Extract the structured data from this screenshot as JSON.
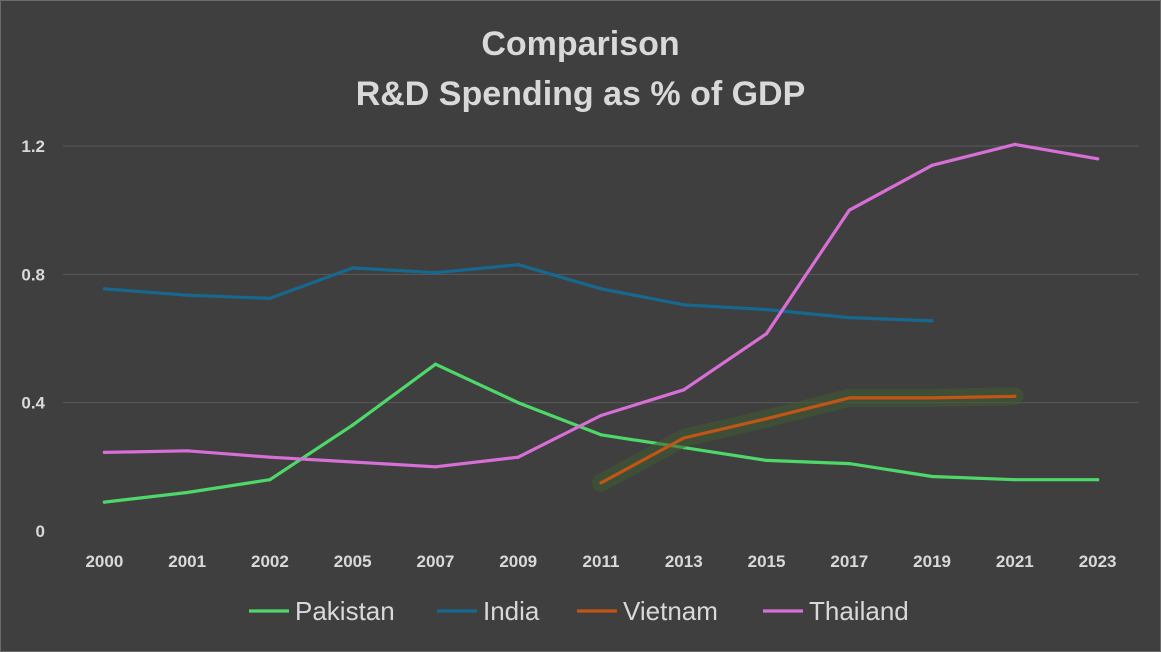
{
  "chart_data": {
    "type": "line",
    "title_line1": "Comparison",
    "title_line2": "R&D Spending as % of GDP",
    "xlabel": "",
    "ylabel": "",
    "categories": [
      "2000",
      "2001",
      "2002",
      "2005",
      "2007",
      "2009",
      "2011",
      "2013",
      "2015",
      "2017",
      "2019",
      "2021",
      "2023"
    ],
    "ylim": [
      0,
      1.2
    ],
    "yticks": [
      0,
      0.4,
      0.8,
      1.2
    ],
    "ytick_labels": [
      "0",
      "0.4",
      "0.8",
      "1.2"
    ],
    "grid": true,
    "legend_position": "bottom",
    "series": [
      {
        "name": "Pakistan",
        "color": "#4fd86a",
        "values": [
          0.09,
          0.12,
          0.16,
          0.33,
          0.52,
          0.4,
          0.3,
          0.26,
          0.22,
          0.21,
          0.17,
          0.16,
          0.16
        ]
      },
      {
        "name": "India",
        "color": "#17688f",
        "values": [
          0.755,
          0.735,
          0.725,
          0.82,
          0.805,
          0.83,
          0.755,
          0.705,
          0.69,
          0.665,
          0.655,
          null,
          null
        ]
      },
      {
        "name": "Vietnam",
        "color": "#c25516",
        "values": [
          null,
          null,
          null,
          null,
          null,
          null,
          0.15,
          0.29,
          0.35,
          0.415,
          0.415,
          0.42,
          null
        ]
      },
      {
        "name": "Thailand",
        "color": "#d76fd6",
        "values": [
          0.245,
          0.25,
          0.23,
          0.215,
          0.2,
          0.23,
          0.36,
          0.44,
          0.615,
          1.0,
          1.14,
          1.205,
          1.16
        ]
      }
    ]
  }
}
